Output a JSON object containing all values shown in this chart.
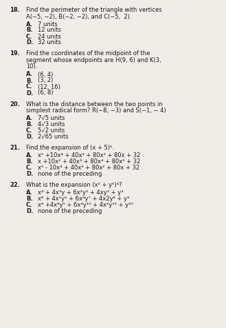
{
  "bg_color": "#f0ede8",
  "text_color": "#1a1a1a",
  "font_size": 6.0,
  "questions": [
    {
      "number": "18.",
      "question_lines": [
        "Find the perimeter of the triangle with vertices",
        "A(−5, −2), B(−2, −2), and C(−5,  2)."
      ],
      "choices": [
        {
          "letter": "A.",
          "text": "7 units"
        },
        {
          "letter": "B.",
          "text": "12 units"
        },
        {
          "letter": "C.",
          "text": "24 units"
        },
        {
          "letter": "D.",
          "text": "32 units"
        }
      ]
    },
    {
      "number": "19.",
      "question_lines": [
        "Find the coordinates of the midpoint of the",
        "segment whose endpoints are H(9, 6) and K(3,",
        "10)."
      ],
      "choices": [
        {
          "letter": "A.",
          "text": "(6, 4)"
        },
        {
          "letter": "B.",
          "text": "(3, 2)"
        },
        {
          "letter": "C.",
          "text": "(12, 16)"
        },
        {
          "letter": "D.",
          "text": "(6, 8)"
        }
      ]
    },
    {
      "number": "20.",
      "question_lines": [
        "What is the distance between the two points in",
        "simplest radical form? R(−8, −3) and S(−1, − 4)"
      ],
      "choices": [
        {
          "letter": "A.",
          "text": "7√5 units"
        },
        {
          "letter": "B.",
          "text": "4√3 units"
        },
        {
          "letter": "C.",
          "text": "5√2 units"
        },
        {
          "letter": "D.",
          "text": "2√65 units"
        }
      ]
    },
    {
      "number": "21.",
      "question_lines": [
        "Find the expansion of (x + 5)⁵."
      ],
      "choices": [
        {
          "letter": "A.",
          "text": "x⁵ +10x⁴ + 40x³ + 80x² + 80x + 32"
        },
        {
          "letter": "B.",
          "text": "x +10x² + 40x³ + 80x⁴ + 80x⁵ + 32"
        },
        {
          "letter": "C.",
          "text": "x⁵ - 10x⁴ + 40x³ + 80x² + 80x + 32"
        },
        {
          "letter": "D.",
          "text": "none of the preceding"
        }
      ]
    },
    {
      "number": "22.",
      "question_lines": [
        "What is the expansion (x² + y⁵)⁴?"
      ],
      "choices": [
        {
          "letter": "A.",
          "text": "x⁴ + 4x³y + 6x²y² + 4xy³ + y⁴"
        },
        {
          "letter": "B.",
          "text": "x⁶ + 4x⁵y⁵ + 6x⁴y⁷ + 4x2y⁸ + y⁹"
        },
        {
          "letter": "C.",
          "text": "x⁸ +4x⁶y⁵ + 6x⁴y¹⁰ + 4x²y¹⁵ + y²⁰"
        },
        {
          "letter": "D.",
          "text": "none of the preceding"
        }
      ]
    }
  ]
}
